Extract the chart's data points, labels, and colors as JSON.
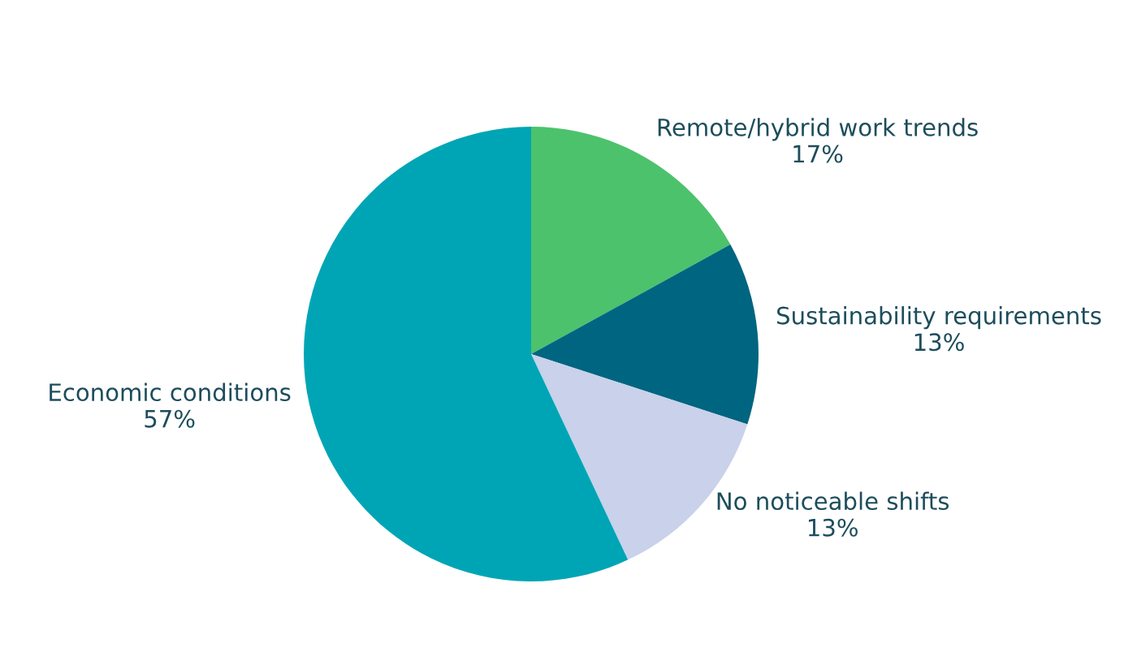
{
  "chart_data": {
    "type": "pie",
    "categories": [
      "Remote/hybrid work trends",
      "Sustainability requirements",
      "No noticeable shifts",
      "Economic conditions"
    ],
    "values": [
      17,
      13,
      13,
      57
    ],
    "value_labels": [
      "17%",
      "13%",
      "13%",
      "57%"
    ],
    "colors": [
      "#4cc26c",
      "#006580",
      "#c9d1eb",
      "#00a5b5"
    ],
    "legend": false
  }
}
